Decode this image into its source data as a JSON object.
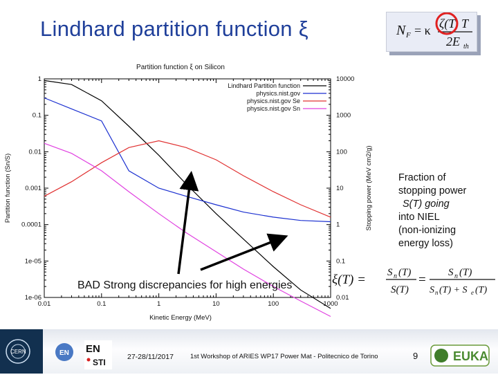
{
  "slide": {
    "title": "Lindhard partition function ξ",
    "formula_label": "N_F = κ ζ(T) T / 2E_th",
    "annotation_fraction": [
      "Fraction of",
      "stopping power",
      "S(T) going",
      "into NIEL",
      "(non-ionizing",
      "energy loss)"
    ],
    "annotation_bad": "BAD Strong discrepancies for high energies",
    "xi_formula": "ξ(T) = Sn(T)/S(T) = Sn(T)/(Sn(T)+Se(T))"
  },
  "footer": {
    "date": "27-28/11/2017",
    "workshop": "1st Workshop of ARIES WP17 Power Mat - Politecnico de Torino",
    "page": "9",
    "logos": [
      "CERN",
      "EN",
      "EN STI",
      "EUKA"
    ]
  },
  "colors": {
    "title": "#1f3f9a",
    "lindhard": "#000000",
    "nist_total": "#1a2fd0",
    "nist_se": "#e03030",
    "nist_sn": "#e040e0",
    "circle": "#e02020"
  },
  "chart_data": {
    "type": "line",
    "title": "Partition function ξ on Silicon",
    "xlabel": "Kinetic Energy (MeV)",
    "ylabel_left": "Partition function (Sn/S)",
    "ylabel_right": "Stopping power (MeV cm2/g)",
    "x_scale": "log",
    "y_scale_left": "log",
    "y_scale_right": "log",
    "xlim": [
      0.01,
      1000
    ],
    "ylim_left": [
      1e-06,
      1
    ],
    "ylim_right": [
      0.01,
      10000
    ],
    "x_ticks": [
      "0.01",
      "0.1",
      "1",
      "10",
      "100",
      "1000"
    ],
    "y_ticks_left": [
      "1e-06",
      "1e-05",
      "0.0001",
      "0.001",
      "0.01",
      "0.1",
      "1"
    ],
    "y_ticks_right": [
      "0.01",
      "0.1",
      "1",
      "10",
      "100",
      "1000",
      "10000"
    ],
    "legend_position": "top-right",
    "series": [
      {
        "name": "Lindhard Partition function",
        "axis": "left",
        "color": "#000000",
        "x": [
          0.01,
          0.03,
          0.1,
          0.3,
          1,
          3,
          10,
          30,
          100,
          300,
          1000
        ],
        "y": [
          0.9,
          0.7,
          0.25,
          0.05,
          0.008,
          0.0013,
          0.0002,
          4e-05,
          7e-06,
          1.6e-06,
          5e-07
        ]
      },
      {
        "name": "physics.nist.gov",
        "axis": "right",
        "color": "#1a2fd0",
        "x": [
          0.01,
          0.03,
          0.1,
          0.3,
          1,
          3,
          10,
          30,
          100,
          300,
          1000
        ],
        "y": [
          3000,
          1500,
          700,
          30,
          10,
          6,
          3.5,
          2.2,
          1.6,
          1.3,
          1.2
        ]
      },
      {
        "name": "physics.nist.gov Se",
        "axis": "right",
        "color": "#e03030",
        "x": [
          0.01,
          0.03,
          0.1,
          0.3,
          1,
          3,
          10,
          30,
          100,
          300,
          1000
        ],
        "y": [
          6,
          15,
          50,
          130,
          200,
          130,
          60,
          22,
          8,
          3.5,
          1.6
        ]
      },
      {
        "name": "physics.nist.gov Sn",
        "axis": "right",
        "color": "#e040e0",
        "x": [
          0.01,
          0.03,
          0.1,
          0.3,
          1,
          3,
          10,
          30,
          100,
          300,
          1000
        ],
        "y": [
          170,
          90,
          30,
          8,
          2,
          0.6,
          0.18,
          0.06,
          0.02,
          0.008,
          0.003
        ]
      }
    ]
  }
}
